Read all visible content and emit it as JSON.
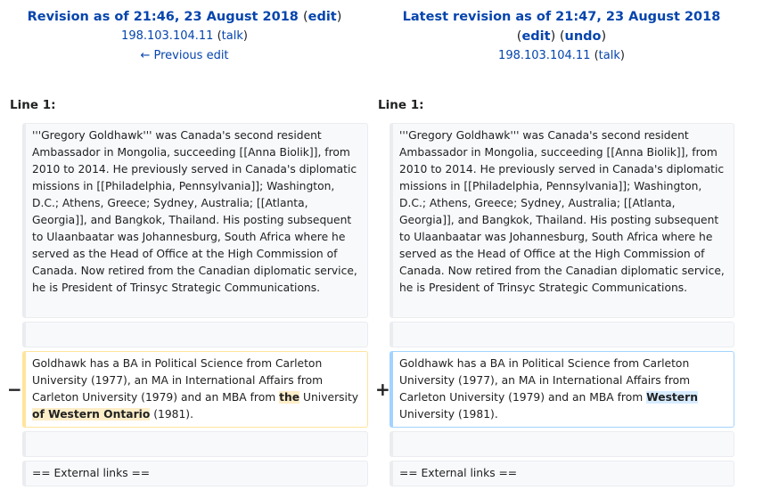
{
  "left": {
    "title": "Revision as of 21:46, 23 August 2018",
    "edit": "edit",
    "user": "198.103.104.11",
    "talk": "talk",
    "prev": "← Previous edit"
  },
  "right": {
    "title": "Latest revision as of 21:47, 23 August 2018",
    "edit": "edit",
    "undo": "undo",
    "user": "198.103.104.11",
    "talk": "talk"
  },
  "line_label": "Line 1:",
  "context_text": "'''Gregory Goldhawk''' was Canada's second resident Ambassador in Mongolia, succeeding [[Anna Biolik]], from 2010 to 2014. He previously served in Canada's diplomatic missions in [[Philadelphia, Pennsylvania]]; Washington, D.C.; Athens, Greece; Sydney, Australia; [[Atlanta, Georgia]], and Bangkok, Thailand. His posting subsequent to Ulaanbaatar was Johannesburg, South Africa where he served as the Head of Office at the High Commission of Canada.  Now retired from the Canadian diplomatic service, he is President of Trinsyc Strategic Communications.",
  "deleted": {
    "marker": "−",
    "before": "Goldhawk  has a BA in Political Science from Carleton University (1977), an MA in International Affairs from Carleton University (1979) and an MBA from ",
    "hl1": "the",
    "mid": " University ",
    "hl2": "of Western Ontario",
    "after": " (1981)."
  },
  "added": {
    "marker": "+",
    "before": "Goldhawk  has a BA in Political Science from Carleton University (1977), an MA in International Affairs from Carleton University (1979) and an MBA from ",
    "hl": "Western",
    "after": " University (1981)."
  },
  "external_links": "== External links =="
}
